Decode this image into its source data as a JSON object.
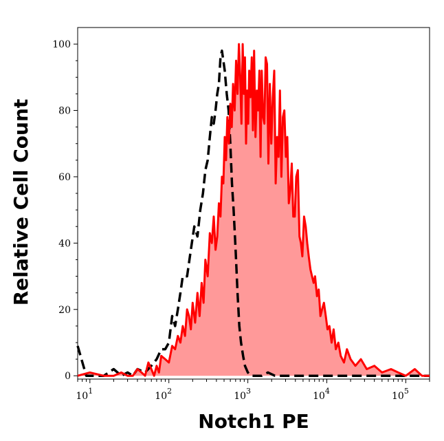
{
  "chart_data": {
    "type": "area",
    "title": "",
    "xlabel": "Notch1 PE",
    "ylabel": "Relative Cell Count",
    "x_scale": "log",
    "xlim": [
      7,
      200000
    ],
    "ylim": [
      -1,
      105
    ],
    "x_ticks": [
      {
        "value": 10,
        "base": "10",
        "exp": "1"
      },
      {
        "value": 100,
        "base": "10",
        "exp": "2"
      },
      {
        "value": 1000,
        "base": "10",
        "exp": "3"
      },
      {
        "value": 10000,
        "base": "10",
        "exp": "4"
      },
      {
        "value": 100000,
        "base": "10",
        "exp": "5"
      }
    ],
    "y_ticks": [
      0,
      20,
      40,
      60,
      80,
      100
    ],
    "grid": false,
    "legend": "none",
    "series": [
      {
        "style": "dashed-line",
        "color": "#000000",
        "x": [
          7,
          9,
          12,
          15,
          20,
          25,
          30,
          35,
          40,
          50,
          60,
          70,
          80,
          90,
          100,
          110,
          120,
          130,
          140,
          150,
          170,
          190,
          210,
          230,
          250,
          270,
          290,
          310,
          330,
          350,
          370,
          390,
          410,
          430,
          450,
          470,
          490,
          510,
          540,
          570,
          600,
          630,
          660,
          700,
          740,
          780,
          820,
          870,
          920,
          1000,
          1100,
          1200,
          1300,
          1500,
          1800,
          2200,
          3000,
          5000,
          10000,
          200000
        ],
        "y": [
          9,
          0,
          0,
          0,
          2,
          0,
          1,
          0,
          2,
          1,
          3,
          5,
          8,
          8,
          10,
          18,
          15,
          20,
          25,
          30,
          30,
          38,
          45,
          42,
          50,
          55,
          62,
          65,
          72,
          78,
          76,
          80,
          85,
          88,
          96,
          98,
          95,
          92,
          85,
          80,
          70,
          58,
          50,
          38,
          25,
          15,
          10,
          6,
          3,
          1,
          0,
          0,
          0,
          0,
          1,
          0,
          0,
          0,
          0,
          0
        ]
      },
      {
        "style": "filled-area",
        "color": "#ff0000",
        "fill": "#ff9999",
        "x": [
          7,
          10,
          15,
          20,
          25,
          30,
          35,
          40,
          45,
          50,
          55,
          60,
          65,
          70,
          75,
          80,
          90,
          100,
          110,
          120,
          130,
          140,
          150,
          160,
          170,
          180,
          190,
          200,
          215,
          230,
          245,
          260,
          275,
          290,
          310,
          330,
          350,
          370,
          390,
          410,
          430,
          450,
          470,
          490,
          510,
          530,
          550,
          575,
          600,
          625,
          650,
          680,
          710,
          740,
          770,
          800,
          830,
          860,
          890,
          920,
          950,
          980,
          1010,
          1040,
          1080,
          1120,
          1160,
          1200,
          1250,
          1300,
          1350,
          1400,
          1450,
          1500,
          1560,
          1620,
          1680,
          1750,
          1820,
          1900,
          1980,
          2070,
          2160,
          2250,
          2350,
          2450,
          2550,
          2660,
          2780,
          2900,
          3030,
          3160,
          3300,
          3450,
          3600,
          3760,
          3930,
          4100,
          4300,
          4500,
          4700,
          4900,
          5150,
          5400,
          5650,
          5900,
          6200,
          6500,
          6800,
          7100,
          7500,
          7900,
          8300,
          8700,
          9200,
          9700,
          10200,
          10800,
          11500,
          12200,
          13000,
          14000,
          15000,
          16500,
          18000,
          20000,
          23000,
          27000,
          32000,
          40000,
          50000,
          65000,
          80000,
          100000,
          130000,
          160000,
          200000
        ],
        "y": [
          0,
          1,
          0,
          0,
          1,
          0,
          0,
          2,
          1,
          0,
          4,
          2,
          0,
          3,
          1,
          6,
          5,
          4,
          9,
          8,
          12,
          10,
          15,
          12,
          20,
          18,
          14,
          22,
          16,
          25,
          18,
          28,
          22,
          35,
          30,
          43,
          40,
          48,
          38,
          42,
          52,
          48,
          60,
          58,
          72,
          65,
          78,
          70,
          82,
          75,
          88,
          80,
          95,
          85,
          100,
          90,
          76,
          100,
          85,
          96,
          70,
          86,
          76,
          92,
          84,
          96,
          74,
          98,
          72,
          86,
          80,
          92,
          66,
          92,
          78,
          76,
          96,
          94,
          64,
          88,
          70,
          84,
          92,
          58,
          72,
          66,
          86,
          60,
          78,
          80,
          66,
          72,
          52,
          56,
          64,
          48,
          48,
          60,
          62,
          42,
          40,
          36,
          48,
          45,
          40,
          36,
          32,
          30,
          28,
          30,
          24,
          26,
          18,
          20,
          22,
          18,
          14,
          15,
          10,
          14,
          8,
          10,
          6,
          4,
          8,
          5,
          3,
          5,
          2,
          3,
          1,
          2,
          1,
          0,
          2,
          0,
          0
        ]
      }
    ]
  }
}
